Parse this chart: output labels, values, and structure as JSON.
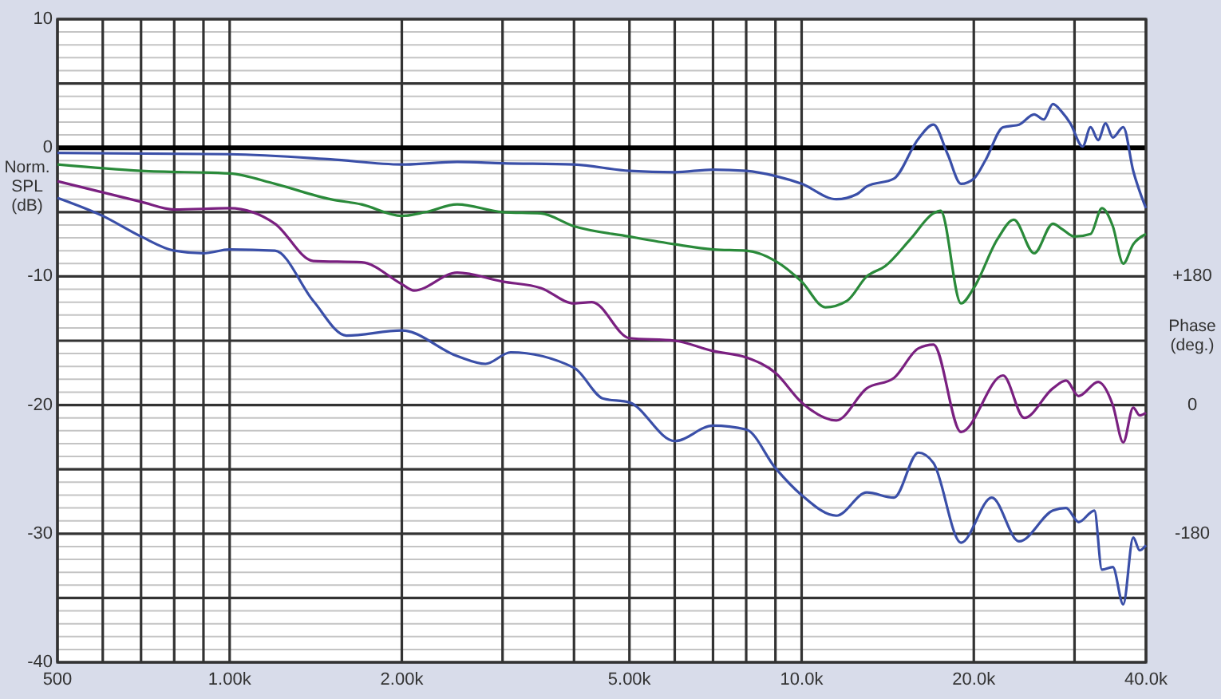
{
  "chart_data": {
    "type": "line",
    "ylabel": "Norm. SPL (dB)",
    "y2label": "Phase (deg.)",
    "xlim": [
      500,
      40000
    ],
    "log": "x",
    "grid": true,
    "xticks": [
      {
        "value": 500,
        "label": "500"
      },
      {
        "value": 600,
        "label": null
      },
      {
        "value": 700,
        "label": null
      },
      {
        "value": 800,
        "label": null
      },
      {
        "value": 900,
        "label": null
      },
      {
        "value": 1000,
        "label": "1.00k"
      },
      {
        "value": 2000,
        "label": "2.00k"
      },
      {
        "value": 3000,
        "label": null
      },
      {
        "value": 4000,
        "label": null
      },
      {
        "value": 5000,
        "label": "5.00k"
      },
      {
        "value": 6000,
        "label": null
      },
      {
        "value": 7000,
        "label": null
      },
      {
        "value": 8000,
        "label": null
      },
      {
        "value": 9000,
        "label": null
      },
      {
        "value": 10000,
        "label": "10.0k"
      },
      {
        "value": 20000,
        "label": "20.0k"
      },
      {
        "value": 30000,
        "label": null
      },
      {
        "value": 40000,
        "label": "40.0k"
      }
    ],
    "ylim": [
      -40,
      10
    ],
    "yticks": [
      10,
      {
        "value": 9,
        "label": null
      },
      {
        "value": 8,
        "label": null
      },
      {
        "value": 7,
        "label": null
      },
      {
        "value": 6,
        "label": null
      },
      {
        "value": 5,
        "label": null
      },
      {
        "value": 4,
        "label": null
      },
      {
        "value": 3,
        "label": null
      },
      {
        "value": 2,
        "label": null
      },
      {
        "value": 1,
        "label": null
      },
      0,
      {
        "value": -1,
        "label": null
      },
      {
        "value": -2,
        "label": null
      },
      {
        "value": -3,
        "label": null
      },
      {
        "value": -4,
        "label": null
      },
      {
        "value": -5,
        "label": null
      },
      {
        "value": -6,
        "label": null
      },
      {
        "value": -7,
        "label": null
      },
      {
        "value": -8,
        "label": null
      },
      {
        "value": -9,
        "label": null
      },
      -10,
      {
        "value": -11,
        "label": null
      },
      {
        "value": -12,
        "label": null
      },
      {
        "value": -13,
        "label": null
      },
      {
        "value": -14,
        "label": null
      },
      {
        "value": -15,
        "label": null
      },
      {
        "value": -16,
        "label": null
      },
      {
        "value": -17,
        "label": null
      },
      {
        "value": -18,
        "label": null
      },
      {
        "value": -19,
        "label": null
      },
      -20,
      {
        "value": -21,
        "label": null
      },
      {
        "value": -22,
        "label": null
      },
      {
        "value": -23,
        "label": null
      },
      {
        "value": -24,
        "label": null
      },
      {
        "value": -25,
        "label": null
      },
      {
        "value": -26,
        "label": null
      },
      {
        "value": -27,
        "label": null
      },
      {
        "value": -28,
        "label": null
      },
      {
        "value": -29,
        "label": null
      },
      -30,
      {
        "value": -31,
        "label": null
      },
      {
        "value": -32,
        "label": null
      },
      {
        "value": -33,
        "label": null
      },
      {
        "value": -34,
        "label": null
      },
      {
        "value": -35,
        "label": null
      },
      {
        "value": -36,
        "label": null
      },
      {
        "value": -37,
        "label": null
      },
      {
        "value": -38,
        "label": null
      },
      {
        "value": -39,
        "label": null
      },
      -40
    ],
    "y2lim": [
      -360,
      540
    ],
    "y2ticks": [
      {
        "value": 180,
        "label": "+180"
      },
      0,
      -180
    ],
    "ref_lines": [
      {
        "axis": "y",
        "value": 0,
        "color": "#000000"
      }
    ],
    "series": [
      {
        "color": "#3a4fa8",
        "x": [
          500,
          1000,
          1500,
          2000,
          2500,
          3000,
          4000,
          5000,
          6000,
          7000,
          8000,
          9000,
          10000,
          11500,
          12500,
          13000,
          14500,
          16000,
          17000,
          18000,
          19000,
          20000,
          21000,
          22500,
          24000,
          25500,
          26500,
          27500,
          28500,
          29500,
          31000,
          32000,
          33000,
          34000,
          35000,
          36500,
          38000,
          40000
        ],
        "values": [
          -0.4,
          -0.5,
          -0.9,
          -1.3,
          -1.1,
          -1.2,
          -1.3,
          -1.8,
          -1.9,
          -1.7,
          -1.8,
          -2.2,
          -2.8,
          -4.0,
          -3.6,
          -3.0,
          -2.4,
          0.7,
          1.8,
          -0.5,
          -2.8,
          -2.4,
          -0.9,
          1.6,
          1.8,
          2.6,
          2.2,
          3.4,
          2.8,
          1.9,
          0.1,
          1.6,
          0.6,
          1.9,
          0.8,
          1.6,
          -1.8,
          -4.7
        ]
      },
      {
        "color": "#2a8a3a",
        "x": [
          500,
          700,
          1000,
          1200,
          1500,
          1700,
          2000,
          2200,
          2500,
          3000,
          3500,
          4000,
          5000,
          6000,
          7000,
          8000,
          9000,
          10000,
          11000,
          12000,
          13000,
          14000,
          15500,
          17000,
          17500,
          19000,
          20000,
          22000,
          23500,
          25500,
          27500,
          28500,
          30000,
          32000,
          33500,
          35000,
          36500,
          38000,
          40000
        ],
        "values": [
          -1.3,
          -1.8,
          -2.0,
          -2.8,
          -4.0,
          -4.4,
          -5.3,
          -5.0,
          -4.4,
          -5.0,
          -5.1,
          -6.1,
          -6.9,
          -7.5,
          -7.9,
          -8.0,
          -8.8,
          -10.4,
          -12.4,
          -11.9,
          -10.0,
          -9.2,
          -7.1,
          -5.1,
          -4.9,
          -12.1,
          -10.9,
          -7.1,
          -5.6,
          -8.2,
          -5.9,
          -6.3,
          -6.9,
          -6.7,
          -4.7,
          -6.1,
          -9.0,
          -7.5,
          -6.7
        ]
      },
      {
        "color": "#7a2080",
        "x": [
          500,
          700,
          800,
          1000,
          1200,
          1400,
          1700,
          2000,
          2100,
          2500,
          3000,
          3500,
          4000,
          4300,
          5000,
          6000,
          7000,
          8000,
          9000,
          10000,
          11500,
          13000,
          14500,
          16000,
          17000,
          19000,
          22500,
          24500,
          27500,
          29000,
          30500,
          33000,
          35000,
          36500,
          38000,
          39000,
          40000
        ],
        "values": [
          -2.6,
          -4.2,
          -4.8,
          -4.7,
          -5.9,
          -8.8,
          -8.9,
          -10.6,
          -11.1,
          -9.7,
          -10.4,
          -10.9,
          -12.1,
          -12.0,
          -14.8,
          -15.0,
          -15.8,
          -16.3,
          -17.5,
          -19.8,
          -21.2,
          -18.7,
          -17.9,
          -15.6,
          -15.3,
          -22.1,
          -17.7,
          -21.0,
          -18.7,
          -18.1,
          -19.3,
          -18.2,
          -20.0,
          -22.9,
          -20.2,
          -20.8,
          -20.6
        ]
      },
      {
        "color": "#3a4fa8",
        "x": [
          500,
          600,
          700,
          800,
          900,
          1000,
          1200,
          1400,
          1600,
          2000,
          2500,
          2800,
          3100,
          4000,
          4500,
          5000,
          6000,
          7000,
          8000,
          9000,
          10000,
          11500,
          13000,
          14500,
          16000,
          17000,
          19000,
          21500,
          24000,
          27500,
          29000,
          30500,
          32500,
          33500,
          35000,
          36500,
          38000,
          39000,
          40000
        ],
        "values": [
          -3.9,
          -5.3,
          -6.9,
          -8.0,
          -8.2,
          -7.9,
          -8.0,
          -11.9,
          -14.6,
          -14.2,
          -16.2,
          -16.8,
          -15.9,
          -17.1,
          -19.5,
          -19.8,
          -22.8,
          -21.6,
          -21.9,
          -24.9,
          -27.0,
          -28.6,
          -26.8,
          -27.2,
          -23.7,
          -24.5,
          -30.7,
          -27.2,
          -30.6,
          -28.2,
          -28.0,
          -29.1,
          -28.2,
          -32.8,
          -32.6,
          -35.5,
          -30.3,
          -31.3,
          -30.9
        ]
      }
    ]
  }
}
